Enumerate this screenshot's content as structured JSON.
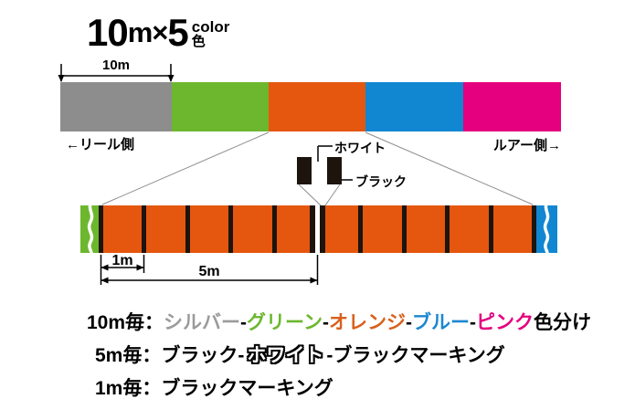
{
  "title": {
    "number": "10",
    "meter_unit": "m",
    "times_sign": "×",
    "count": "5",
    "sub_top": "color",
    "sub_bottom": "色"
  },
  "top_bar": {
    "dimension_label": "10m",
    "left_label": "←リール側",
    "right_label": "ルアー側→",
    "segments": [
      {
        "name": "silver",
        "color": "#8d8d8d"
      },
      {
        "name": "green",
        "color": "#6cb72e"
      },
      {
        "name": "orange",
        "color": "#e5570e"
      },
      {
        "name": "blue",
        "color": "#1187d1"
      },
      {
        "name": "pink",
        "color": "#e4007f"
      }
    ]
  },
  "marking_detail": {
    "white_label": "ホワイト",
    "black_label": "ブラック",
    "pattern": [
      "black",
      "white",
      "black"
    ],
    "black_color": "#1c140d",
    "white_color": "#ffffff"
  },
  "magnified_bar": {
    "base_color": "#e5570e",
    "left_end_color": "#6cb72e",
    "right_end_color": "#1187d1",
    "mark_color": "#1c140d",
    "one_meter_label": "1m",
    "five_meter_label": "5m",
    "one_meter_marks": 10
  },
  "legend": {
    "lines": [
      {
        "label": "10m毎：",
        "parts": [
          {
            "text": "シルバー",
            "color": "#9b9b9b"
          },
          {
            "text": "-",
            "color": "#000000"
          },
          {
            "text": "グリーン",
            "color": "#6cb72e"
          },
          {
            "text": "-",
            "color": "#000000"
          },
          {
            "text": "オレンジ",
            "color": "#d8601c"
          },
          {
            "text": "-",
            "color": "#000000"
          },
          {
            "text": "ブルー",
            "color": "#1b87d0"
          },
          {
            "text": "-",
            "color": "#000000"
          },
          {
            "text": "ピンク",
            "color": "#e4007f"
          },
          {
            "text": "色分け",
            "color": "#000000"
          }
        ]
      },
      {
        "label": "5m毎：",
        "parts": [
          {
            "text": "ブラック-",
            "color": "#000000"
          },
          {
            "text": "ホワイト",
            "color": "#ffffff",
            "outlined": true
          },
          {
            "text": "-ブラックマーキング",
            "color": "#000000"
          }
        ]
      },
      {
        "label": "1m毎：",
        "parts": [
          {
            "text": "ブラックマーキング",
            "color": "#000000"
          }
        ]
      }
    ]
  }
}
